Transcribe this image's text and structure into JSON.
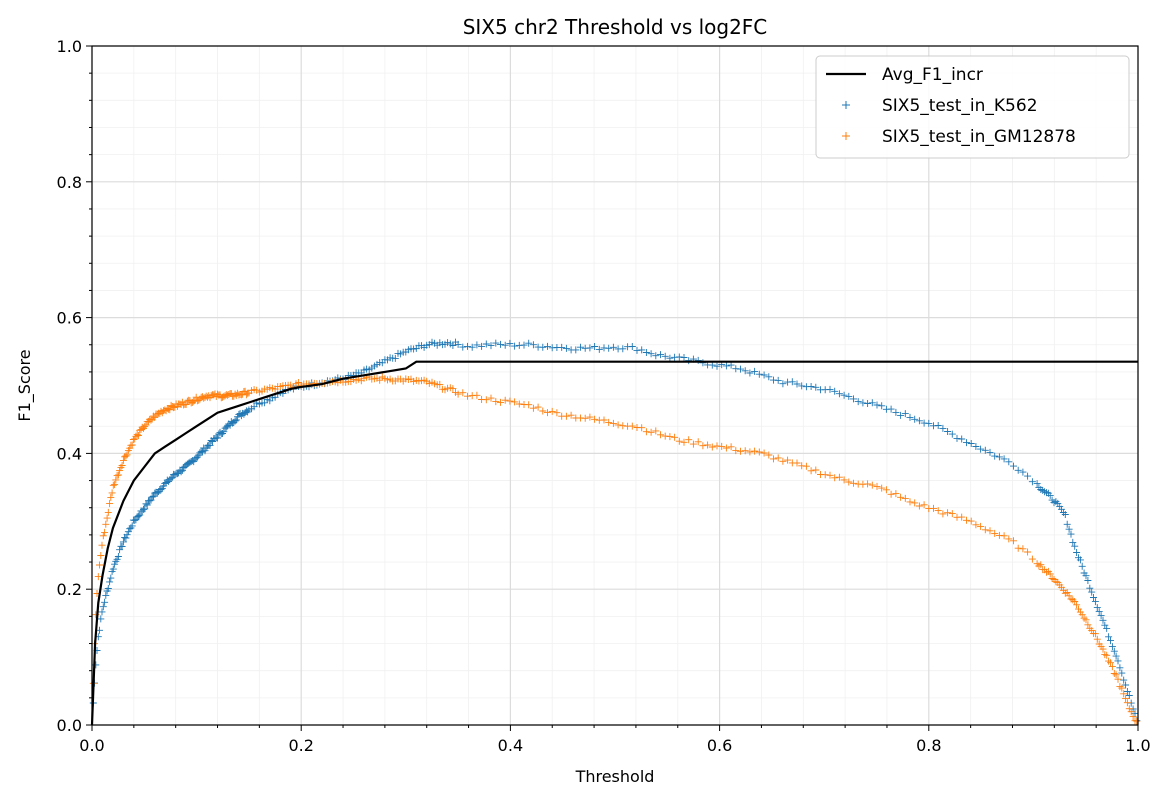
{
  "chart_data": {
    "type": "line",
    "title": "SIX5 chr2 Threshold vs log2FC",
    "xlabel": "Threshold",
    "ylabel": "F1_Score",
    "xlim": [
      0.0,
      1.0
    ],
    "ylim": [
      0.0,
      1.0
    ],
    "x_ticks": [
      "0.0",
      "0.2",
      "0.4",
      "0.6",
      "0.8",
      "1.0"
    ],
    "y_ticks": [
      "0.0",
      "0.2",
      "0.4",
      "0.6",
      "0.8",
      "1.0"
    ],
    "grid": true,
    "minor_grid": true,
    "legend_position": "top-right",
    "series": [
      {
        "name": "Avg_F1_incr",
        "kind": "line",
        "color": "#000000",
        "points": [
          [
            0.0,
            0.0
          ],
          [
            0.003,
            0.12
          ],
          [
            0.006,
            0.18
          ],
          [
            0.01,
            0.22
          ],
          [
            0.015,
            0.26
          ],
          [
            0.02,
            0.29
          ],
          [
            0.03,
            0.33
          ],
          [
            0.04,
            0.36
          ],
          [
            0.05,
            0.38
          ],
          [
            0.06,
            0.4
          ],
          [
            0.07,
            0.41
          ],
          [
            0.08,
            0.42
          ],
          [
            0.09,
            0.43
          ],
          [
            0.1,
            0.44
          ],
          [
            0.11,
            0.45
          ],
          [
            0.12,
            0.46
          ],
          [
            0.13,
            0.465
          ],
          [
            0.14,
            0.47
          ],
          [
            0.15,
            0.475
          ],
          [
            0.16,
            0.48
          ],
          [
            0.17,
            0.485
          ],
          [
            0.18,
            0.49
          ],
          [
            0.19,
            0.495
          ],
          [
            0.2,
            0.498
          ],
          [
            0.22,
            0.502
          ],
          [
            0.24,
            0.51
          ],
          [
            0.26,
            0.515
          ],
          [
            0.28,
            0.52
          ],
          [
            0.3,
            0.525
          ],
          [
            0.31,
            0.535
          ],
          [
            0.4,
            0.535
          ],
          [
            0.5,
            0.535
          ],
          [
            0.6,
            0.535
          ],
          [
            0.7,
            0.535
          ],
          [
            0.8,
            0.535
          ],
          [
            0.9,
            0.535
          ],
          [
            1.0,
            0.535
          ]
        ]
      },
      {
        "name": "SIX5_test_in_K562",
        "kind": "scatter",
        "marker": "+",
        "color": "#1f77b4",
        "points": [
          [
            0.0,
            0.0
          ],
          [
            0.003,
            0.08
          ],
          [
            0.006,
            0.13
          ],
          [
            0.01,
            0.17
          ],
          [
            0.015,
            0.2
          ],
          [
            0.02,
            0.23
          ],
          [
            0.03,
            0.27
          ],
          [
            0.04,
            0.3
          ],
          [
            0.05,
            0.32
          ],
          [
            0.06,
            0.34
          ],
          [
            0.07,
            0.355
          ],
          [
            0.08,
            0.37
          ],
          [
            0.09,
            0.38
          ],
          [
            0.1,
            0.395
          ],
          [
            0.11,
            0.41
          ],
          [
            0.12,
            0.425
          ],
          [
            0.13,
            0.44
          ],
          [
            0.14,
            0.455
          ],
          [
            0.15,
            0.465
          ],
          [
            0.16,
            0.475
          ],
          [
            0.17,
            0.48
          ],
          [
            0.18,
            0.49
          ],
          [
            0.19,
            0.495
          ],
          [
            0.2,
            0.498
          ],
          [
            0.22,
            0.505
          ],
          [
            0.24,
            0.51
          ],
          [
            0.26,
            0.52
          ],
          [
            0.28,
            0.535
          ],
          [
            0.3,
            0.55
          ],
          [
            0.32,
            0.56
          ],
          [
            0.34,
            0.563
          ],
          [
            0.36,
            0.558
          ],
          [
            0.38,
            0.56
          ],
          [
            0.4,
            0.56
          ],
          [
            0.42,
            0.56
          ],
          [
            0.44,
            0.557
          ],
          [
            0.46,
            0.555
          ],
          [
            0.48,
            0.555
          ],
          [
            0.5,
            0.557
          ],
          [
            0.52,
            0.555
          ],
          [
            0.54,
            0.545
          ],
          [
            0.56,
            0.54
          ],
          [
            0.58,
            0.535
          ],
          [
            0.6,
            0.53
          ],
          [
            0.62,
            0.525
          ],
          [
            0.64,
            0.515
          ],
          [
            0.66,
            0.505
          ],
          [
            0.68,
            0.5
          ],
          [
            0.7,
            0.495
          ],
          [
            0.72,
            0.485
          ],
          [
            0.74,
            0.475
          ],
          [
            0.76,
            0.465
          ],
          [
            0.78,
            0.455
          ],
          [
            0.8,
            0.445
          ],
          [
            0.82,
            0.43
          ],
          [
            0.84,
            0.415
          ],
          [
            0.86,
            0.4
          ],
          [
            0.88,
            0.385
          ],
          [
            0.9,
            0.36
          ],
          [
            0.91,
            0.345
          ],
          [
            0.92,
            0.33
          ],
          [
            0.93,
            0.31
          ],
          [
            0.94,
            0.26
          ],
          [
            0.95,
            0.22
          ],
          [
            0.96,
            0.18
          ],
          [
            0.97,
            0.14
          ],
          [
            0.98,
            0.1
          ],
          [
            0.99,
            0.05
          ],
          [
            1.0,
            0.0
          ]
        ]
      },
      {
        "name": "SIX5_test_in_GM12878",
        "kind": "scatter",
        "marker": "+",
        "color": "#ff7f0e",
        "points": [
          [
            0.0,
            0.0
          ],
          [
            0.003,
            0.15
          ],
          [
            0.006,
            0.22
          ],
          [
            0.01,
            0.27
          ],
          [
            0.015,
            0.31
          ],
          [
            0.02,
            0.35
          ],
          [
            0.03,
            0.39
          ],
          [
            0.04,
            0.42
          ],
          [
            0.05,
            0.44
          ],
          [
            0.06,
            0.455
          ],
          [
            0.07,
            0.465
          ],
          [
            0.08,
            0.47
          ],
          [
            0.09,
            0.475
          ],
          [
            0.1,
            0.48
          ],
          [
            0.11,
            0.485
          ],
          [
            0.12,
            0.485
          ],
          [
            0.13,
            0.485
          ],
          [
            0.14,
            0.487
          ],
          [
            0.15,
            0.49
          ],
          [
            0.16,
            0.492
          ],
          [
            0.17,
            0.495
          ],
          [
            0.18,
            0.497
          ],
          [
            0.19,
            0.5
          ],
          [
            0.2,
            0.502
          ],
          [
            0.22,
            0.505
          ],
          [
            0.24,
            0.507
          ],
          [
            0.26,
            0.51
          ],
          [
            0.28,
            0.51
          ],
          [
            0.3,
            0.508
          ],
          [
            0.32,
            0.505
          ],
          [
            0.34,
            0.495
          ],
          [
            0.36,
            0.485
          ],
          [
            0.38,
            0.48
          ],
          [
            0.4,
            0.475
          ],
          [
            0.42,
            0.47
          ],
          [
            0.44,
            0.46
          ],
          [
            0.46,
            0.455
          ],
          [
            0.48,
            0.45
          ],
          [
            0.5,
            0.445
          ],
          [
            0.52,
            0.44
          ],
          [
            0.54,
            0.43
          ],
          [
            0.56,
            0.42
          ],
          [
            0.58,
            0.415
          ],
          [
            0.6,
            0.41
          ],
          [
            0.62,
            0.405
          ],
          [
            0.64,
            0.4
          ],
          [
            0.66,
            0.39
          ],
          [
            0.68,
            0.38
          ],
          [
            0.7,
            0.37
          ],
          [
            0.72,
            0.36
          ],
          [
            0.74,
            0.355
          ],
          [
            0.76,
            0.345
          ],
          [
            0.78,
            0.33
          ],
          [
            0.8,
            0.32
          ],
          [
            0.82,
            0.31
          ],
          [
            0.84,
            0.3
          ],
          [
            0.86,
            0.285
          ],
          [
            0.88,
            0.27
          ],
          [
            0.9,
            0.245
          ],
          [
            0.92,
            0.215
          ],
          [
            0.94,
            0.18
          ],
          [
            0.96,
            0.13
          ],
          [
            0.98,
            0.07
          ],
          [
            0.99,
            0.03
          ],
          [
            1.0,
            0.0
          ]
        ]
      }
    ]
  }
}
